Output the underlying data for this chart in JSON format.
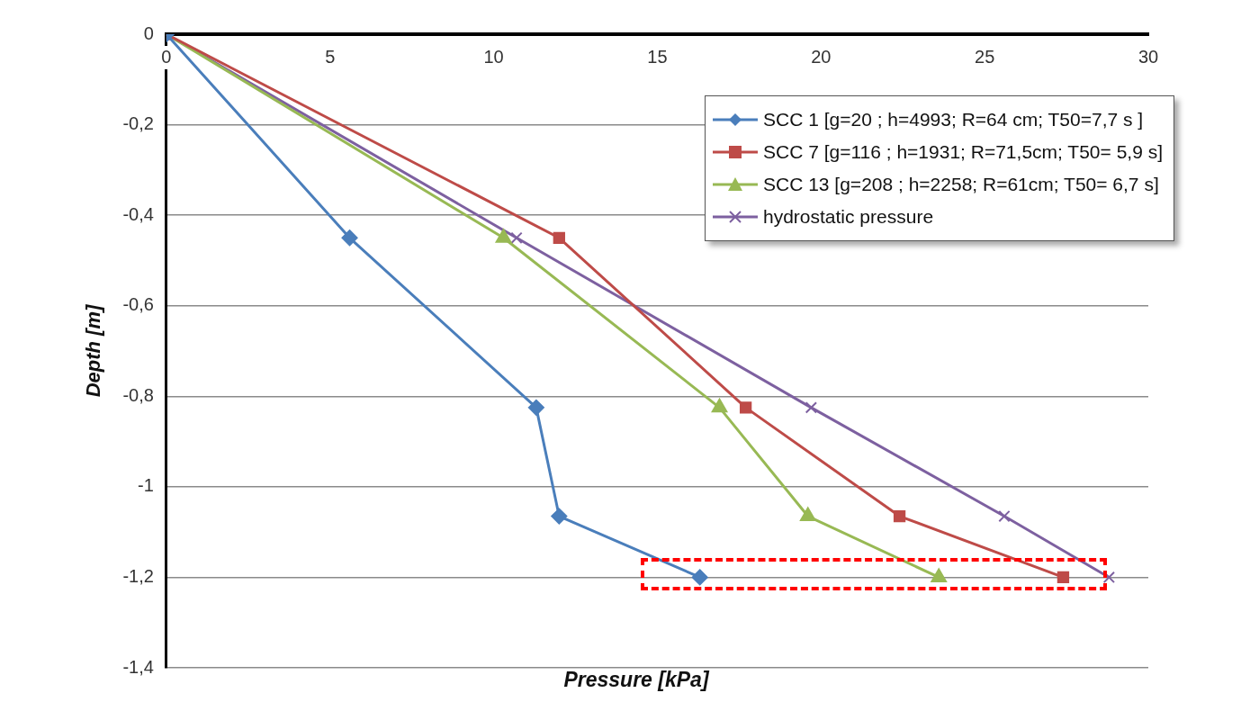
{
  "chart_data": {
    "type": "line",
    "xlabel": "Pressure [kPa]",
    "ylabel": "Depth [m]",
    "series": [
      {
        "name": "SCC 1 [g=20 ; h=4993; R=64 cm; T50=7,7 s ]",
        "color": "#4a7ebb",
        "marker": "diamond",
        "x": [
          0,
          5.6,
          11.3,
          12,
          16.3
        ],
        "values": [
          0,
          -0.45,
          -0.825,
          -1.065,
          -1.2
        ]
      },
      {
        "name": "SCC 7 [g=116 ; h=1931; R=71,5cm; T50= 5,9 s]",
        "color": "#be4b48",
        "marker": "square",
        "x": [
          0,
          12,
          17.7,
          22.4,
          27.4
        ],
        "values": [
          0,
          -0.45,
          -0.825,
          -1.065,
          -1.2
        ]
      },
      {
        "name": "SCC 13 [g=208 ; h=2258; R=61cm; T50= 6,7 s]",
        "color": "#98b954",
        "marker": "triangle",
        "x": [
          0,
          10.3,
          16.9,
          19.6,
          23.6
        ],
        "values": [
          0,
          -0.45,
          -0.825,
          -1.065,
          -1.2
        ]
      },
      {
        "name": "hydrostatic pressure",
        "color": "#7d60a0",
        "marker": "cross",
        "x": [
          0,
          10.7,
          19.7,
          25.6,
          28.8
        ],
        "values": [
          0,
          -0.45,
          -0.825,
          -1.065,
          -1.2
        ]
      }
    ],
    "xlim": [
      0,
      30
    ],
    "xticks": [
      0,
      5,
      10,
      15,
      20,
      25,
      30
    ],
    "ylim": [
      -1.4,
      0
    ],
    "yticks": [
      0,
      {
        "value": -0.2,
        "label": "-0,2"
      },
      {
        "value": -0.4,
        "label": "-0,4"
      },
      {
        "value": -0.6,
        "label": "-0,6"
      },
      {
        "value": -0.8,
        "label": "-0,8"
      },
      -1,
      {
        "value": -1.2,
        "label": "-1,2"
      },
      {
        "value": -1.4,
        "label": "-1,4"
      }
    ],
    "grid": "y",
    "legend": "top right"
  }
}
